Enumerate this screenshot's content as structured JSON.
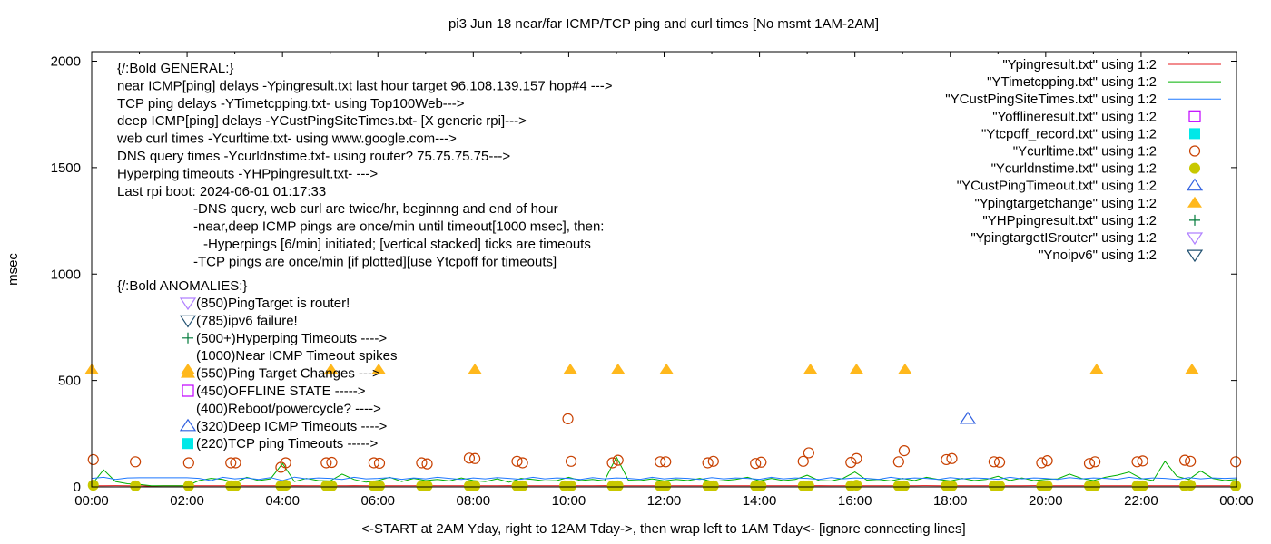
{
  "chart_data": {
    "type": "line",
    "title": "pi3 Jun 18  near/far ICMP/TCP ping and curl times [No msmt 1AM-2AM]",
    "xlabel": "<-START at 2AM Yday, right to 12AM Tday->, then wrap left to 1AM Tday<- [ignore connecting lines]",
    "ylabel": "msec",
    "xlim": [
      "00:00",
      "24:00"
    ],
    "ylim": [
      0,
      2045
    ],
    "x_ticks": [
      "00:00",
      "02:00",
      "04:00",
      "06:00",
      "08:00",
      "10:00",
      "12:00",
      "14:00",
      "16:00",
      "18:00",
      "20:00",
      "22:00",
      "00:00"
    ],
    "y_ticks": [
      0,
      500,
      1000,
      1500,
      2000
    ],
    "grid": false,
    "legend_placement": "top-right",
    "series": [
      {
        "name": "\"Ypingresult.txt\" using 1:2",
        "style": "line",
        "color": "#e41a1c",
        "x_hours_step": 0.25,
        "values": [
          5,
          5,
          6,
          5,
          5,
          4,
          5,
          5,
          5,
          5,
          5,
          5,
          6,
          5,
          5,
          5,
          5,
          6,
          5,
          5,
          5,
          5,
          6,
          5,
          5,
          5,
          5,
          5,
          6,
          5,
          5,
          5,
          5,
          5,
          5,
          6,
          5,
          5,
          5,
          5,
          5,
          5,
          5,
          6,
          5,
          5,
          5,
          5,
          5,
          5,
          5,
          5,
          6,
          5,
          5,
          5,
          5,
          5,
          5,
          5,
          5,
          6,
          5,
          5,
          5,
          5,
          5,
          5,
          5,
          5,
          6,
          5,
          5,
          5,
          5,
          5,
          5,
          5,
          5,
          6,
          5,
          5,
          5,
          5,
          5,
          5,
          5,
          5,
          6,
          5,
          5,
          5,
          5,
          5,
          5,
          5,
          5
        ]
      },
      {
        "name": "\"YTimetcpping.txt\" using 1:2",
        "style": "line",
        "color": "#00b000",
        "x_hours_step": 0.25,
        "values": [
          10,
          80,
          25,
          15,
          12,
          5,
          5,
          5,
          5,
          30,
          40,
          35,
          20,
          45,
          30,
          38,
          110,
          25,
          40,
          30,
          28,
          60,
          35,
          22,
          30,
          45,
          25,
          40,
          30,
          35,
          28,
          42,
          30,
          25,
          38,
          22,
          40,
          35,
          28,
          30,
          45,
          30,
          35,
          28,
          140,
          32,
          30,
          38,
          28,
          35,
          30,
          40,
          25,
          30,
          35,
          45,
          28,
          40,
          30,
          35,
          55,
          30,
          28,
          40,
          70,
          32,
          35,
          28,
          40,
          30,
          45,
          35,
          28,
          40,
          30,
          35,
          50,
          30,
          42,
          30,
          35,
          38,
          60,
          40,
          30,
          45,
          55,
          70,
          40,
          30,
          120,
          50,
          35,
          75,
          40,
          30,
          35
        ]
      },
      {
        "name": "\"YCustPingSiteTimes.txt\" using 1:2",
        "style": "line",
        "color": "#1f78ff",
        "x_hours_step": 0.25,
        "values": [
          40,
          45,
          35,
          42,
          43,
          43,
          43,
          43,
          43,
          40,
          30,
          45,
          38,
          42,
          35,
          44,
          30,
          46,
          38,
          42,
          40,
          35,
          45,
          38,
          40,
          44,
          36,
          42,
          38,
          45,
          40,
          35,
          42,
          38,
          44,
          40,
          36,
          45,
          38,
          42,
          40,
          35,
          44,
          38,
          42,
          40,
          36,
          45,
          38,
          42,
          40,
          35,
          44,
          38,
          42,
          40,
          36,
          45,
          38,
          42,
          40,
          35,
          44,
          38,
          42,
          40,
          36,
          45,
          38,
          42,
          40,
          35,
          44,
          38,
          42,
          40,
          36,
          45,
          38,
          42,
          40,
          35,
          44,
          38,
          42,
          40,
          36,
          45,
          38,
          42,
          40,
          35,
          44,
          38,
          42,
          40,
          42
        ]
      },
      {
        "name": "\"Yofflineresult.txt\" using 1:2",
        "style": "open-square",
        "color": "#c000ff",
        "points": []
      },
      {
        "name": "\"Ytcpoff_record.txt\" using 1:2",
        "style": "filled-square",
        "color": "#00e8e8",
        "points": []
      },
      {
        "name": "\"Ycurltime.txt\" using 1:2",
        "style": "open-circle",
        "color": "#c84000",
        "points": [
          [
            "00:02",
            128
          ],
          [
            "00:55",
            118
          ],
          [
            "02:02",
            113
          ],
          [
            "02:55",
            113
          ],
          [
            "03:01",
            113
          ],
          [
            "03:58",
            92
          ],
          [
            "04:04",
            113
          ],
          [
            "04:55",
            113
          ],
          [
            "05:02",
            115
          ],
          [
            "05:55",
            113
          ],
          [
            "06:02",
            111
          ],
          [
            "06:55",
            113
          ],
          [
            "07:02",
            108
          ],
          [
            "07:55",
            135
          ],
          [
            "08:02",
            133
          ],
          [
            "08:55",
            120
          ],
          [
            "09:02",
            113
          ],
          [
            "09:59",
            320
          ],
          [
            "10:03",
            120
          ],
          [
            "10:55",
            113
          ],
          [
            "11:02",
            125
          ],
          [
            "11:55",
            118
          ],
          [
            "12:02",
            118
          ],
          [
            "12:55",
            113
          ],
          [
            "13:02",
            120
          ],
          [
            "13:55",
            110
          ],
          [
            "14:02",
            116
          ],
          [
            "14:55",
            120
          ],
          [
            "15:02",
            160
          ],
          [
            "15:55",
            115
          ],
          [
            "16:02",
            133
          ],
          [
            "16:55",
            118
          ],
          [
            "17:02",
            170
          ],
          [
            "17:55",
            128
          ],
          [
            "18:02",
            133
          ],
          [
            "18:55",
            118
          ],
          [
            "19:02",
            116
          ],
          [
            "19:55",
            113
          ],
          [
            "20:02",
            123
          ],
          [
            "20:55",
            110
          ],
          [
            "21:02",
            118
          ],
          [
            "21:55",
            118
          ],
          [
            "22:02",
            122
          ],
          [
            "22:55",
            125
          ],
          [
            "23:02",
            120
          ],
          [
            "23:59",
            118
          ]
        ]
      },
      {
        "name": "\"Ycurldnstime.txt\" using 1:2",
        "style": "filled-circle",
        "color": "#c8c800",
        "points": [
          [
            "00:02",
            8
          ],
          [
            "00:55",
            5
          ],
          [
            "02:02",
            5
          ],
          [
            "02:55",
            5
          ],
          [
            "03:01",
            5
          ],
          [
            "03:58",
            5
          ],
          [
            "04:04",
            8
          ],
          [
            "04:55",
            5
          ],
          [
            "05:02",
            5
          ],
          [
            "05:55",
            5
          ],
          [
            "06:02",
            5
          ],
          [
            "06:55",
            5
          ],
          [
            "07:02",
            5
          ],
          [
            "07:55",
            5
          ],
          [
            "08:02",
            5
          ],
          [
            "08:55",
            5
          ],
          [
            "09:02",
            5
          ],
          [
            "09:55",
            5
          ],
          [
            "10:03",
            5
          ],
          [
            "10:55",
            5
          ],
          [
            "11:02",
            5
          ],
          [
            "11:55",
            5
          ],
          [
            "12:02",
            5
          ],
          [
            "12:55",
            5
          ],
          [
            "13:02",
            5
          ],
          [
            "13:55",
            5
          ],
          [
            "14:02",
            5
          ],
          [
            "14:55",
            5
          ],
          [
            "15:02",
            5
          ],
          [
            "15:55",
            5
          ],
          [
            "16:02",
            8
          ],
          [
            "16:55",
            5
          ],
          [
            "17:02",
            5
          ],
          [
            "17:55",
            5
          ],
          [
            "18:02",
            5
          ],
          [
            "18:55",
            5
          ],
          [
            "19:02",
            5
          ],
          [
            "19:55",
            5
          ],
          [
            "20:02",
            5
          ],
          [
            "20:55",
            5
          ],
          [
            "21:02",
            5
          ],
          [
            "21:55",
            5
          ],
          [
            "22:02",
            5
          ],
          [
            "22:55",
            5
          ],
          [
            "23:02",
            8
          ],
          [
            "23:59",
            5
          ]
        ]
      },
      {
        "name": "\"YCustPingTimeout.txt\" using 1:2",
        "style": "open-triangle-up",
        "color": "#3060e0",
        "points": [
          [
            "18:22",
            320
          ]
        ]
      },
      {
        "name": "\"Ypingtargetchange\" using 1:2",
        "style": "filled-triangle-up",
        "color": "#ffb81c",
        "points": [
          [
            "00:00",
            550
          ],
          [
            "02:01",
            550
          ],
          [
            "05:01",
            550
          ],
          [
            "06:01",
            550
          ],
          [
            "08:02",
            550
          ],
          [
            "10:02",
            550
          ],
          [
            "11:02",
            550
          ],
          [
            "12:03",
            550
          ],
          [
            "15:04",
            550
          ],
          [
            "16:02",
            550
          ],
          [
            "17:03",
            550
          ],
          [
            "21:04",
            550
          ],
          [
            "23:04",
            550
          ]
        ]
      },
      {
        "name": "\"YHPpingresult.txt\" using 1:2",
        "style": "plus",
        "color": "#007a3a",
        "points": []
      },
      {
        "name": "\"YpingtargetISrouter\" using 1:2",
        "style": "open-triangle-down",
        "color": "#b080ff",
        "points": []
      },
      {
        "name": "\"Ynoipv6\" using 1:2",
        "style": "open-triangle-down",
        "color": "#205070",
        "points": []
      }
    ],
    "annotations": {
      "general": [
        "{/:Bold GENERAL:}",
        "near ICMP[ping] delays -Ypingresult.txt last hour target 96.108.139.157 hop#4 --->",
        "TCP ping delays -YTimetcpping.txt- using Top100Web--->",
        "deep ICMP[ping] delays -YCustPingSiteTimes.txt- [X generic rpi]--->",
        "web curl times -Ycurltime.txt- using www.google.com--->",
        "DNS query times -Ycurldnstime.txt- using router? 75.75.75.75--->",
        "Hyperping timeouts -YHPpingresult.txt- --->",
        "Last rpi boot: 2024-06-01 01:17:33",
        "-DNS query, web curl are twice/hr, beginnng and end of hour",
        "-near,deep ICMP pings are once/min until timeout[1000 msec], then:",
        "-Hyperpings [6/min] initiated; [vertical stacked] ticks are timeouts",
        "-TCP pings are once/min [if plotted][use Ytcpoff for timeouts]"
      ],
      "anomalies_title": "{/:Bold ANOMALIES:}",
      "anomalies": [
        {
          "icon": "open-triangle-down",
          "color": "#b080ff",
          "text": "(850)PingTarget is router!"
        },
        {
          "icon": "open-triangle-down",
          "color": "#205070",
          "text": "(785)ipv6 failure!"
        },
        {
          "icon": "plus",
          "color": "#007a3a",
          "text": "(500+)Hyperping Timeouts ---->"
        },
        {
          "icon": "",
          "color": "",
          "text": "(1000)Near ICMP Timeout spikes"
        },
        {
          "icon": "filled-triangle-up",
          "color": "#ffb81c",
          "text": "(550)Ping Target Changes --->"
        },
        {
          "icon": "open-square",
          "color": "#c000ff",
          "text": "(450)OFFLINE STATE ----->"
        },
        {
          "icon": "",
          "color": "",
          "text": "(400)Reboot/powercycle? ---->"
        },
        {
          "icon": "open-triangle-up",
          "color": "#3060e0",
          "text": "(320)Deep ICMP Timeouts ---->"
        },
        {
          "icon": "filled-square",
          "color": "#00e8e8",
          "text": "(220)TCP ping Timeouts ----->"
        }
      ]
    }
  }
}
